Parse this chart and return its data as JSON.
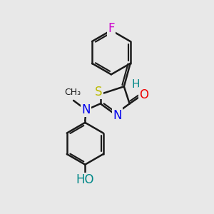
{
  "bg_color": "#e8e8e8",
  "bond_color": "#1a1a1a",
  "bond_width": 1.8,
  "atoms": {
    "F": {
      "color": "#cc00cc",
      "fontsize": 12
    },
    "S": {
      "color": "#bbbb00",
      "fontsize": 12
    },
    "N": {
      "color": "#0000ee",
      "fontsize": 12
    },
    "O": {
      "color": "#ee0000",
      "fontsize": 12
    },
    "H": {
      "color": "#008888",
      "fontsize": 11
    },
    "OH": {
      "color": "#008888",
      "fontsize": 12
    },
    "Me": {
      "color": "#1a1a1a",
      "fontsize": 10
    }
  },
  "figsize": [
    3.0,
    3.0
  ],
  "dpi": 100,
  "xlim": [
    0,
    10
  ],
  "ylim": [
    0,
    10
  ]
}
